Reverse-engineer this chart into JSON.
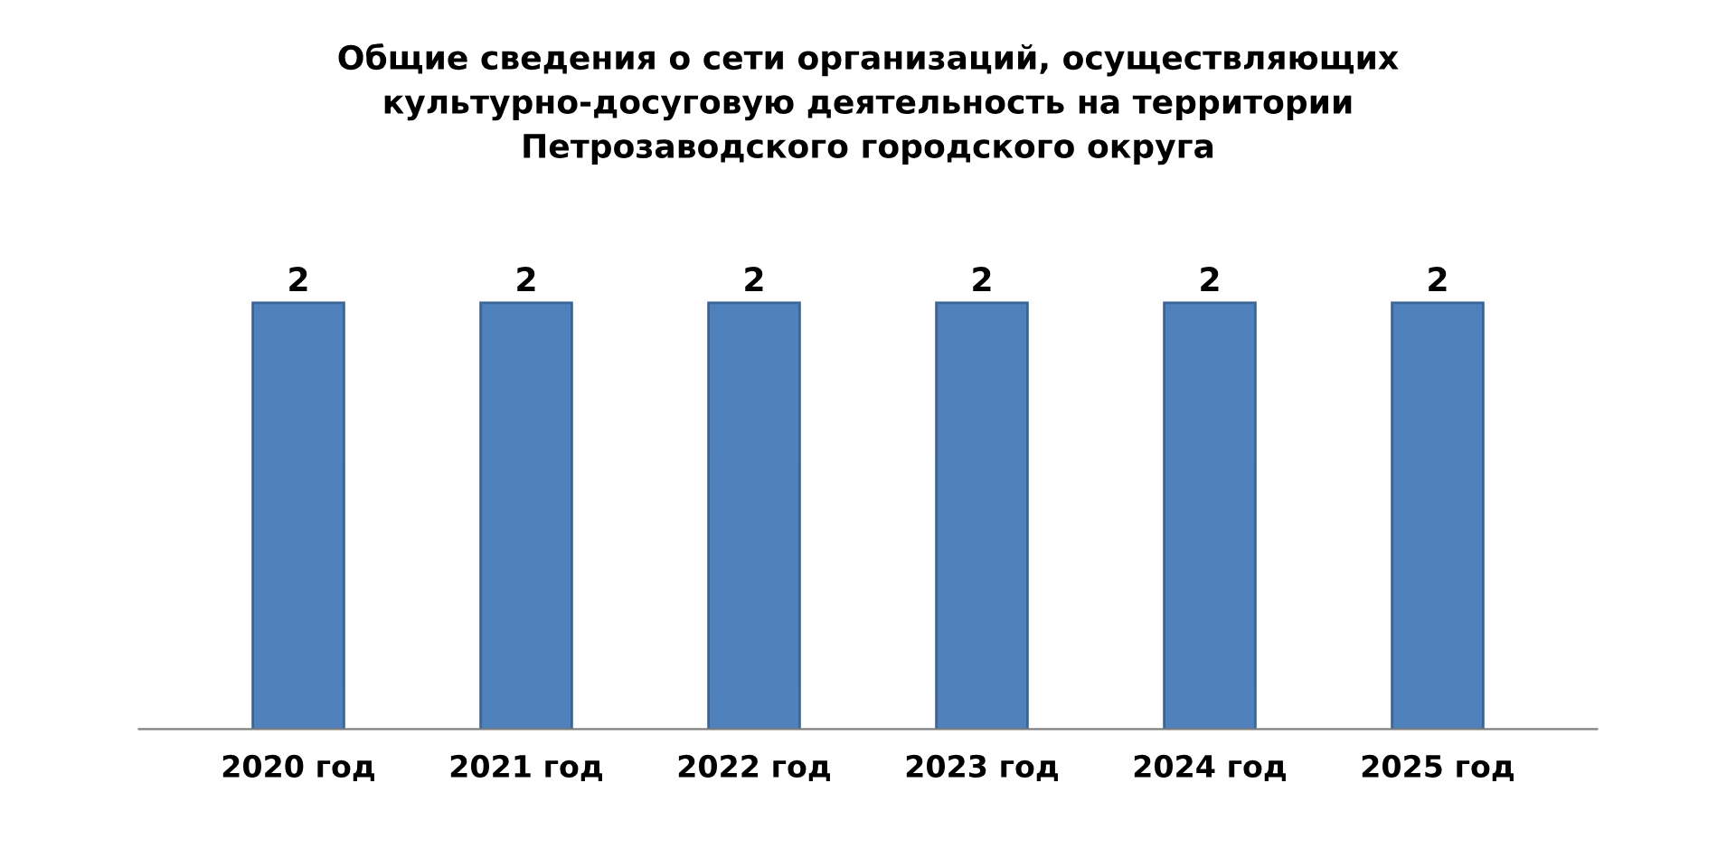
{
  "chart_data": {
    "type": "bar",
    "title": "Общие сведения о сети организаций, осуществляющих\nкультурно-досуговую деятельность на территории\nПетрозаводского городского округа",
    "categories": [
      "2020 год",
      "2021 год",
      "2022 год",
      "2023 год",
      "2024 год",
      "2025 год"
    ],
    "values": [
      2,
      2,
      2,
      2,
      2,
      2
    ],
    "color": "#4f81bd",
    "data_labels": true,
    "grid": false,
    "legend": false
  }
}
